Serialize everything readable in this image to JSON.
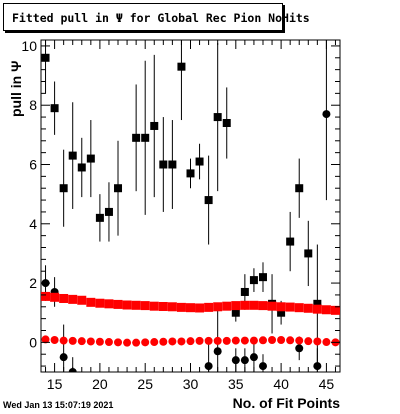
{
  "chart_data": {
    "type": "scatter",
    "title": "Fitted pull in  Ψ  for Global Rec Pion NoHits",
    "xlabel": "No. of Fit Points",
    "ylabel": "pull in  Ψ",
    "xlim": [
      13.5,
      46.5
    ],
    "ylim": [
      -1.0,
      10.2
    ],
    "xticks": [
      15,
      20,
      25,
      30,
      35,
      40,
      45
    ],
    "yticks": [
      0,
      2,
      4,
      6,
      8,
      10
    ],
    "series": [
      {
        "marker": "square",
        "color": "#000000",
        "x": [
          14,
          15,
          16,
          17,
          18,
          19,
          20,
          21,
          22,
          24,
          25,
          26,
          27,
          28,
          29,
          30,
          31,
          32,
          33,
          34,
          35,
          36,
          37,
          38,
          39,
          40,
          41,
          42,
          43,
          44
        ],
        "y": [
          9.6,
          7.9,
          5.2,
          6.3,
          5.9,
          6.2,
          4.2,
          4.4,
          5.2,
          6.9,
          6.9,
          7.3,
          6.0,
          6.0,
          9.3,
          5.7,
          6.1,
          4.8,
          7.6,
          7.4,
          1.0,
          1.7,
          2.1,
          2.2,
          1.3,
          1.0,
          3.4,
          5.2,
          3.0,
          1.3
        ],
        "err": [
          1.2,
          0.9,
          1.3,
          1.8,
          1.0,
          1.3,
          0.8,
          1.0,
          1.6,
          1.8,
          2.6,
          2.4,
          1.6,
          1.5,
          1.8,
          0.5,
          0.6,
          1.5,
          2.5,
          1.2,
          0.3,
          0.6,
          0.4,
          0.5,
          1.0,
          0.4,
          1.0,
          1.0,
          1.1,
          2.0
        ]
      },
      {
        "marker": "circle",
        "color": "#000000",
        "x": [
          14,
          15,
          16,
          17,
          32,
          33,
          35,
          36,
          37,
          38,
          42,
          44,
          45
        ],
        "y": [
          2.0,
          1.7,
          -0.5,
          -1.0,
          -0.8,
          -0.3,
          -0.6,
          -0.6,
          -0.5,
          -0.8,
          -0.2,
          -0.8,
          7.7
        ],
        "err": [
          0.6,
          0.5,
          1.1,
          0.5,
          0.9,
          1.5,
          0.4,
          0.4,
          0.6,
          0.4,
          0.4,
          0.6,
          2.9
        ]
      },
      {
        "marker": "square",
        "color": "#ff0000",
        "x": [
          14,
          15,
          16,
          17,
          18,
          19,
          20,
          21,
          22,
          23,
          24,
          25,
          26,
          27,
          28,
          29,
          30,
          31,
          32,
          33,
          34,
          35,
          36,
          37,
          38,
          39,
          40,
          41,
          42,
          43,
          44,
          45,
          46
        ],
        "y": [
          1.55,
          1.52,
          1.48,
          1.45,
          1.42,
          1.35,
          1.32,
          1.3,
          1.28,
          1.26,
          1.25,
          1.24,
          1.22,
          1.21,
          1.2,
          1.18,
          1.17,
          1.16,
          1.18,
          1.2,
          1.22,
          1.24,
          1.25,
          1.25,
          1.24,
          1.22,
          1.2,
          1.19,
          1.17,
          1.15,
          1.12,
          1.1,
          1.08
        ]
      },
      {
        "marker": "circle",
        "color": "#ff0000",
        "x": [
          14,
          15,
          16,
          17,
          18,
          19,
          20,
          21,
          22,
          23,
          24,
          25,
          26,
          27,
          28,
          29,
          30,
          31,
          32,
          33,
          34,
          35,
          36,
          37,
          38,
          39,
          40,
          41,
          42,
          43,
          44,
          45,
          46
        ],
        "y": [
          0.1,
          0.08,
          0.06,
          0.05,
          0.04,
          0.03,
          0.02,
          0.01,
          0.0,
          -0.01,
          -0.01,
          0.0,
          0.01,
          0.02,
          0.03,
          0.03,
          0.04,
          0.05,
          0.05,
          0.05,
          0.05,
          0.06,
          0.06,
          0.06,
          0.07,
          0.08,
          0.08,
          0.07,
          0.06,
          0.04,
          0.03,
          0.01,
          0.0
        ]
      }
    ]
  },
  "footer": {
    "date": "Wed Jan 13 15:07:19 2021"
  }
}
